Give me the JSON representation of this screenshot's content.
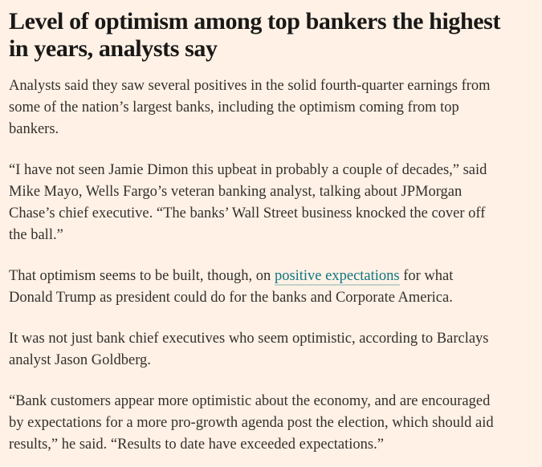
{
  "article": {
    "headline": [
      "Level of optimism among top bankers the highest",
      "in years, analysts say"
    ],
    "p1": [
      "Analysts said they saw several positives in the solid fourth-quarter earnings from",
      "some of the nation’s largest banks, including the optimism coming from top",
      "bankers."
    ],
    "p2": [
      "“I have not seen Jamie Dimon this upbeat in probably a couple of decades,” said",
      "Mike Mayo, Wells Fargo’s veteran banking analyst, talking about JPMorgan",
      "Chase’s chief executive. “The banks’ Wall Street business knocked the cover off",
      "the ball.”"
    ],
    "p3": {
      "line1_before": "That optimism seems to be built, though, on ",
      "link": "positive expectations",
      "line1_after": " for what",
      "line2": "Donald Trump as president could do for the banks and Corporate America."
    },
    "p4": [
      "It was not just bank chief executives who seem optimistic, according to Barclays",
      "analyst Jason Goldberg."
    ],
    "p5": [
      "“Bank customers appear more optimistic about the economy, and are encouraged",
      "by expectations for a more pro-growth agenda post the election, which should aid",
      "results,” he said. “Results to date have exceeded expectations.”"
    ]
  },
  "colors": {
    "background": "#fff1e5",
    "text": "#33302e",
    "link": "#0d7680"
  }
}
